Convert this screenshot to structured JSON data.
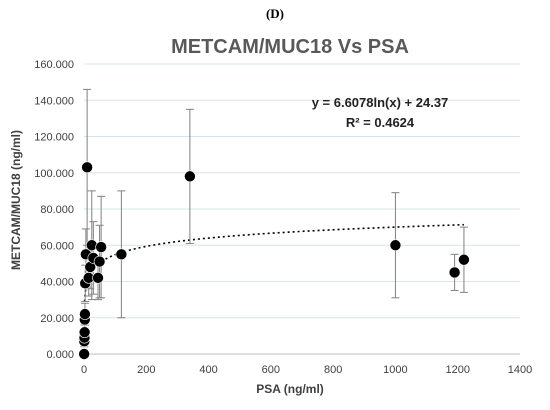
{
  "panel_label": "(D)",
  "chart_data": {
    "type": "scatter",
    "title": "METCAM/MUC18 Vs PSA",
    "xlabel": "PSA (ng/ml)",
    "ylabel": "METCAM/MUC18  (ng/ml)",
    "xlim": [
      0,
      1400
    ],
    "ylim": [
      0,
      160
    ],
    "xticks": [
      0,
      200,
      400,
      600,
      800,
      1000,
      1200,
      1400
    ],
    "yticks": [
      0,
      20,
      40,
      60,
      80,
      100,
      120,
      140,
      160
    ],
    "xtick_labels": [
      "0",
      "200",
      "400",
      "600",
      "800",
      "1000",
      "1200",
      "1400"
    ],
    "ytick_labels": [
      "0.000",
      "20.000",
      "40.000",
      "60.000",
      "80.000",
      "100.000",
      "120.000",
      "140.000",
      "160.000"
    ],
    "grid": "horizontal",
    "points": [
      {
        "x": 0.5,
        "y": 0,
        "err": 0
      },
      {
        "x": 1,
        "y": 7,
        "err": 3
      },
      {
        "x": 1.5,
        "y": 9,
        "err": 3
      },
      {
        "x": 2,
        "y": 12,
        "err": 4
      },
      {
        "x": 2.5,
        "y": 19,
        "err": 5
      },
      {
        "x": 3,
        "y": 22,
        "err": 6
      },
      {
        "x": 4,
        "y": 39,
        "err": 10
      },
      {
        "x": 6,
        "y": 55,
        "err": 14
      },
      {
        "x": 10,
        "y": 103,
        "err": 43
      },
      {
        "x": 15,
        "y": 42,
        "err": 10
      },
      {
        "x": 20,
        "y": 48,
        "err": 12
      },
      {
        "x": 25,
        "y": 60,
        "err": 30
      },
      {
        "x": 30,
        "y": 53,
        "err": 20
      },
      {
        "x": 45,
        "y": 42,
        "err": 12
      },
      {
        "x": 50,
        "y": 51,
        "err": 20
      },
      {
        "x": 55,
        "y": 59,
        "err": 28
      },
      {
        "x": 120,
        "y": 55,
        "err": 35
      },
      {
        "x": 340,
        "y": 98,
        "err": 37
      },
      {
        "x": 1000,
        "y": 60,
        "err": 29
      },
      {
        "x": 1190,
        "y": 45,
        "err": 10
      },
      {
        "x": 1220,
        "y": 52,
        "err": 18
      }
    ],
    "trendline": {
      "type": "logarithmic",
      "a": 6.6078,
      "b": 24.37,
      "x_range": [
        2,
        1220
      ],
      "equation": "y = 6.6078ln(x) + 24.37",
      "r2": "R² = 0.4624"
    },
    "marker_color": "#000000"
  }
}
